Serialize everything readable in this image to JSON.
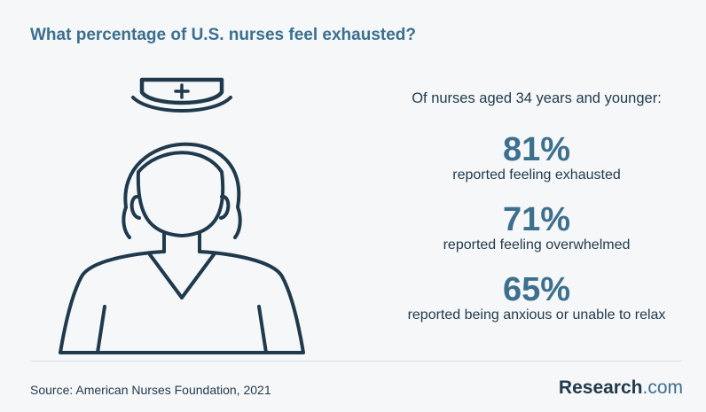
{
  "title": "What percentage of U.S. nurses feel exhausted?",
  "intro": "Of nurses aged 34 years and younger:",
  "stats": [
    {
      "value": "81%",
      "label": "reported feeling exhausted"
    },
    {
      "value": "71%",
      "label": "reported feeling overwhelmed"
    },
    {
      "value": "65%",
      "label": "reported being anxious or unable to relax"
    }
  ],
  "source": "Source: American Nurses Foundation, 2021",
  "brand": {
    "name": "Research",
    "tld": ".com"
  },
  "icon": "nurse-icon",
  "colors": {
    "accent": "#3d6f8e",
    "text": "#1f3a4d",
    "background": "#f6f7f8"
  }
}
